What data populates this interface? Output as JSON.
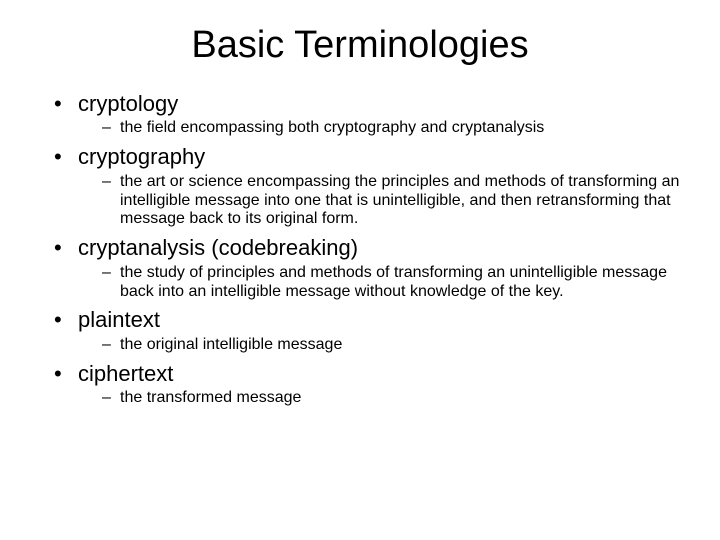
{
  "title": "Basic Terminologies",
  "title_fontsize": 38,
  "term_fontsize": 22,
  "def_fontsize": 16,
  "background_color": "#ffffff",
  "text_color": "#000000",
  "bullet_marker": "•",
  "sub_marker": "–",
  "items": [
    {
      "term": "cryptology",
      "definition": "the field encompassing both cryptography and cryptanalysis"
    },
    {
      "term": "cryptography",
      "definition": "the art or science encompassing the principles and methods of transforming an intelligible message into one that is unintelligible, and then retransforming that message back to its original form."
    },
    {
      "term": "cryptanalysis (codebreaking)",
      "definition": "the study of principles and methods of transforming an unintelligible message back into an intelligible message without knowledge of the key."
    },
    {
      "term": "plaintext",
      "definition": "the original intelligible message"
    },
    {
      "term": "ciphertext",
      "definition": "the transformed message"
    }
  ]
}
